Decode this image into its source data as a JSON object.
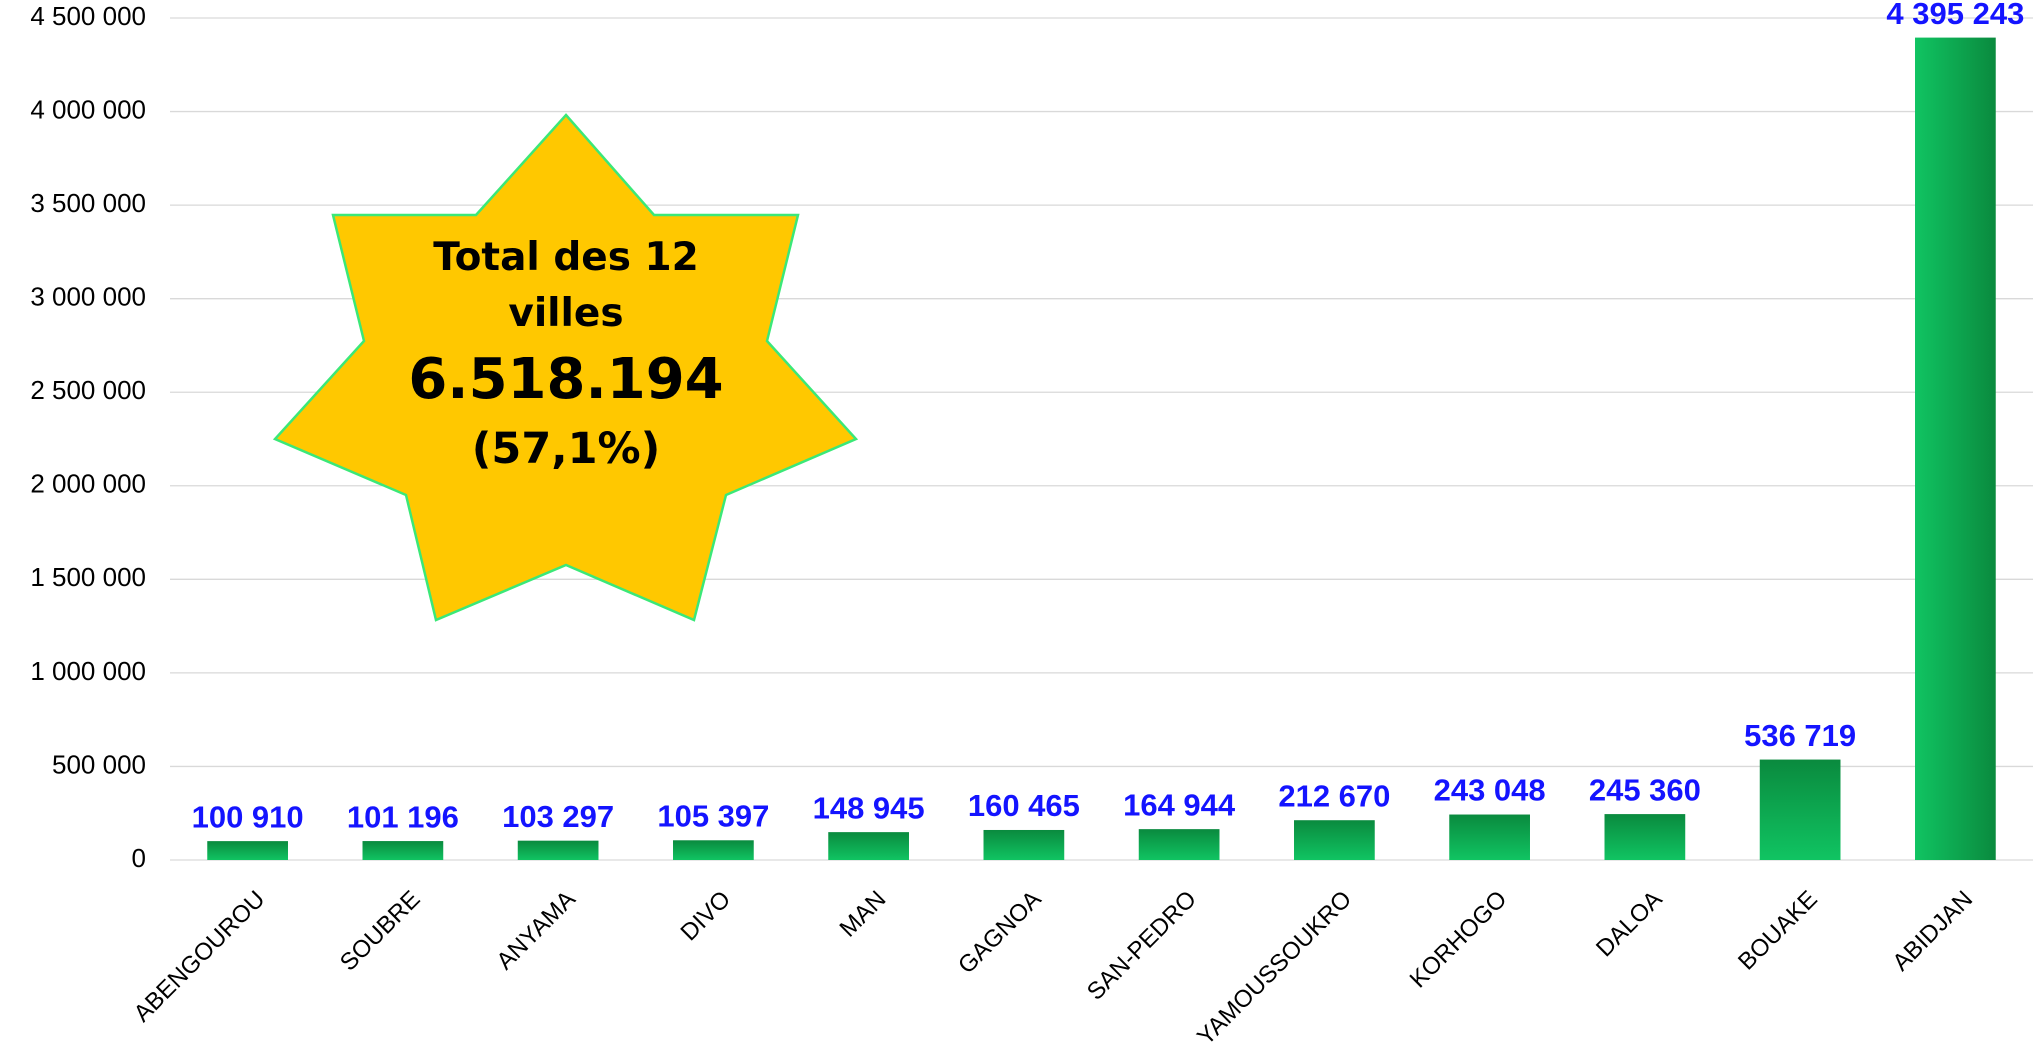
{
  "chart_data": {
    "type": "bar",
    "categories": [
      "ABENGOUROU",
      "SOUBRE",
      "ANYAMA",
      "DIVO",
      "MAN",
      "GAGNOA",
      "SAN-PEDRO",
      "YAMOUSSOUKRO",
      "KORHOGO",
      "DALOA",
      "BOUAKE",
      "ABIDJAN"
    ],
    "values": [
      100910,
      101196,
      103297,
      105397,
      148945,
      160465,
      164944,
      212670,
      243048,
      245360,
      536719,
      4395243
    ],
    "value_labels": [
      "100 910",
      "101 196",
      "103 297",
      "105 397",
      "148 945",
      "160 465",
      "164 944",
      "212 670",
      "243 048",
      "245 360",
      "536 719",
      "4 395 243"
    ],
    "color": "#00b050",
    "ylim": [
      0,
      4500000
    ],
    "yticks": [
      0,
      {
        "value": 500000,
        "label": "500 000"
      },
      {
        "value": 1000000,
        "label": "1 000 000"
      },
      {
        "value": 1500000,
        "label": "1 500 000"
      },
      {
        "value": 2000000,
        "label": "2 000 000"
      },
      {
        "value": 2500000,
        "label": "2 500 000"
      },
      {
        "value": 3000000,
        "label": "3 000 000"
      },
      {
        "value": 3500000,
        "label": "3 500 000"
      },
      {
        "value": 4000000,
        "label": "4 000 000"
      },
      {
        "value": 4500000,
        "label": "4 500 000"
      }
    ],
    "grid": true,
    "annotations": [
      "Total des 12 villes",
      "6.518.194",
      "(57,1%)"
    ]
  }
}
